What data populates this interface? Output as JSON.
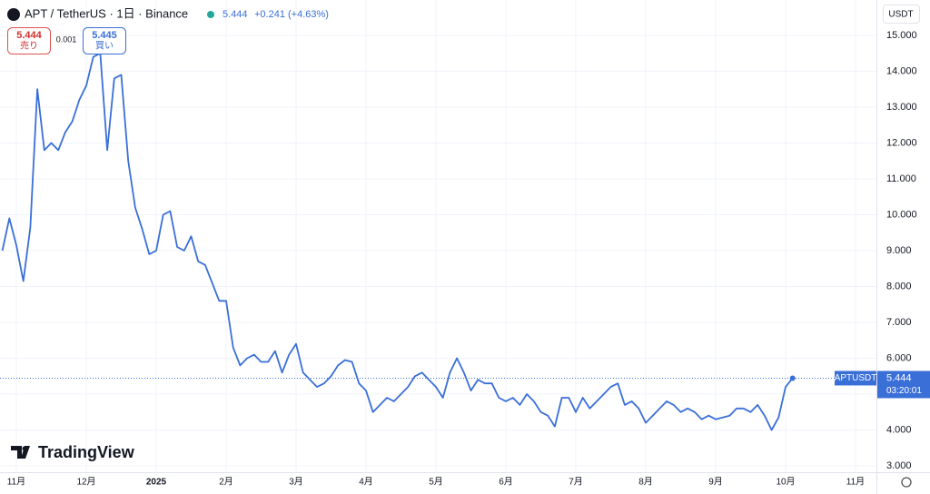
{
  "chart_data": {
    "type": "line",
    "title": "APT / TetherUS · 1日 · Binance",
    "header_price": "5.444",
    "header_change": "+0.241 (+4.63%)",
    "sell": {
      "price": "5.444",
      "label": "売り"
    },
    "spread": "0.001",
    "buy": {
      "price": "5.445",
      "label": "買い"
    },
    "y_axis_unit": "USDT",
    "brand": "TradingView",
    "last_price": {
      "symbol": "APTUSDT",
      "label": "5.444",
      "countdown": "03:20:01"
    },
    "categories": [
      null,
      null,
      "11月",
      null,
      null,
      null,
      null,
      null,
      null,
      null,
      null,
      null,
      "12月",
      null,
      null,
      null,
      null,
      null,
      null,
      null,
      null,
      null,
      "2025",
      null,
      null,
      null,
      null,
      null,
      null,
      null,
      null,
      null,
      "2月",
      null,
      null,
      null,
      null,
      null,
      null,
      null,
      null,
      null,
      "3月",
      null,
      null,
      null,
      null,
      null,
      null,
      null,
      null,
      null,
      "4月",
      null,
      null,
      null,
      null,
      null,
      null,
      null,
      null,
      null,
      "5月",
      null,
      null,
      null,
      null,
      null,
      null,
      null,
      null,
      null,
      "6月",
      null,
      null,
      null,
      null,
      null,
      null,
      null,
      null,
      null,
      "7月",
      null,
      null,
      null,
      null,
      null,
      null,
      null,
      null,
      null,
      "8月",
      null,
      null,
      null,
      null,
      null,
      null,
      null,
      null,
      null,
      "9月",
      null,
      null,
      null,
      null,
      null,
      null,
      null,
      null,
      null,
      "10月",
      null,
      null,
      null,
      null,
      null,
      null,
      null,
      null,
      null,
      "11月"
    ],
    "series": [
      {
        "name": "APTUSDT",
        "color": "#3a6fd8",
        "values": [
          9.0,
          9.9,
          9.15,
          8.15,
          9.65,
          13.5,
          11.8,
          12.0,
          11.8,
          12.3,
          12.6,
          13.2,
          13.6,
          14.4,
          14.5,
          11.8,
          13.8,
          13.9,
          11.5,
          10.2,
          9.6,
          8.9,
          9.0,
          10.0,
          10.1,
          9.1,
          9.0,
          9.4,
          8.7,
          8.6,
          8.1,
          7.6,
          7.6,
          6.3,
          5.8,
          6.0,
          6.1,
          5.9,
          5.9,
          6.2,
          5.6,
          6.1,
          6.4,
          5.6,
          5.4,
          5.2,
          5.3,
          5.5,
          5.8,
          5.95,
          5.9,
          5.3,
          5.1,
          4.5,
          4.7,
          4.9,
          4.8,
          5.0,
          5.2,
          5.5,
          5.6,
          5.4,
          5.2,
          4.9,
          5.6,
          6.0,
          5.6,
          5.1,
          5.4,
          5.3,
          5.3,
          4.9,
          4.8,
          4.9,
          4.7,
          5.0,
          4.8,
          4.5,
          4.4,
          4.1,
          4.9,
          4.9,
          4.5,
          4.9,
          4.6,
          4.8,
          5.0,
          5.2,
          5.3,
          4.7,
          4.8,
          4.6,
          4.2,
          4.4,
          4.6,
          4.8,
          4.7,
          4.5,
          4.6,
          4.5,
          4.3,
          4.4,
          4.3,
          4.35,
          4.4,
          4.6,
          4.6,
          4.5,
          4.7,
          4.4,
          4.0,
          4.35,
          5.2,
          5.444,
          null,
          null,
          null,
          null,
          null,
          null,
          null,
          null,
          null
        ]
      }
    ],
    "ylim": [
      2.823,
      15.987
    ],
    "yticks": [
      {
        "value": 3,
        "label": "3.000"
      },
      {
        "value": 4,
        "label": "4.000"
      },
      {
        "value": 5,
        "label": "5.000"
      },
      {
        "value": 6,
        "label": "6.000"
      },
      {
        "value": 7,
        "label": "7.000"
      },
      {
        "value": 8,
        "label": "8.000"
      },
      {
        "value": 9,
        "label": "9.000"
      },
      {
        "value": 10,
        "label": "10.000"
      },
      {
        "value": 11,
        "label": "11.000"
      },
      {
        "value": 12,
        "label": "12.000"
      },
      {
        "value": 13,
        "label": "13.000"
      },
      {
        "value": 14,
        "label": "14.000"
      },
      {
        "value": 15,
        "label": "15.000"
      }
    ],
    "grid": true
  }
}
